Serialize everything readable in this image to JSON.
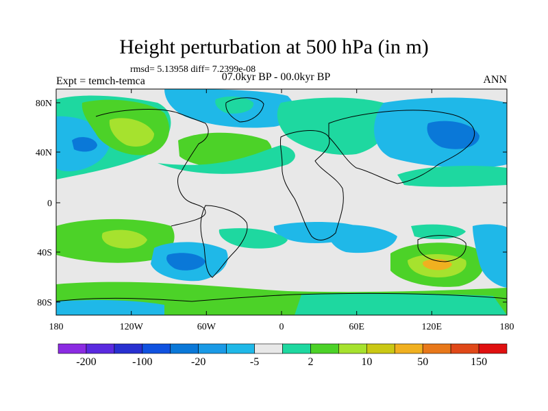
{
  "title": "Height perturbation at 500 hPa (in m)",
  "stats": "rmsd= 5.13958 diff= 7.2399e-08",
  "experiment": "Expt = temch-temca",
  "period": "07.0kyr BP - 00.0kyr BP",
  "season": "ANN",
  "map": {
    "lat_ticks": [
      "80N",
      "40N",
      "0",
      "40S",
      "80S"
    ],
    "lon_ticks": [
      "180",
      "120W",
      "60W",
      "0",
      "60E",
      "120E",
      "180"
    ],
    "colors": {
      "neutral": "#e8e8e8",
      "c_m5": "#1fb8e8",
      "c_m20": "#0a78d8",
      "c_m100": "#1e2ec8",
      "c_2": "#1ed8a0",
      "c_10": "#4cd228",
      "c_20": "#a6e22e",
      "c_50": "#f0b020"
    }
  },
  "colorbar": {
    "colors": [
      "#8b2be2",
      "#5a2ae0",
      "#2830d0",
      "#1052e0",
      "#0a78d8",
      "#1a9ae6",
      "#1fb8e8",
      "#e8e8e8",
      "#1ed8a0",
      "#4cd228",
      "#a6e22e",
      "#cac814",
      "#f0b020",
      "#e8781a",
      "#e04818",
      "#e01010"
    ],
    "labels": [
      "-200",
      "-100",
      "-20",
      "-5",
      "2",
      "10",
      "50",
      "150"
    ]
  }
}
